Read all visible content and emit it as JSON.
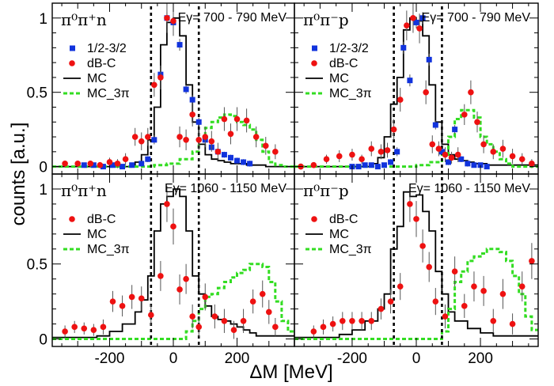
{
  "figure": {
    "ylabel": "counts [a.u.]",
    "xlabel": "ΔM [MeV]",
    "colors": {
      "dbc": "#ee1111",
      "half": "#1133dd",
      "mc": "#000000",
      "mc3pi": "#33dd22"
    }
  },
  "chart_data": [
    {
      "type": "scatter",
      "title": "π⁰π⁺n",
      "energy_range": "Eγ= 700 - 790 MeV",
      "xlim": [
        -380,
        380
      ],
      "ylim": [
        -0.05,
        1.1
      ],
      "xticks": [
        -200,
        0,
        200
      ],
      "yticks": [
        0,
        0.5,
        1
      ],
      "ytick_labels": [
        "0",
        "0.5",
        "1"
      ],
      "cuts": [
        -70,
        80
      ],
      "legend": [
        "1/2-3/2",
        "dB-C",
        "MC",
        "MC_3π"
      ],
      "series": {
        "half": {
          "name": "1/2-3/2",
          "x": [
            -280,
            -250,
            -220,
            -190,
            -160,
            -130,
            -100,
            -80,
            -60,
            -40,
            -20,
            0,
            20,
            40,
            60,
            80,
            100,
            120,
            140,
            160,
            180,
            200,
            220,
            240
          ],
          "y": [
            0.01,
            0.01,
            0.0,
            0.01,
            0.0,
            0.01,
            0.02,
            0.05,
            0.18,
            0.62,
            1.0,
            0.97,
            0.82,
            0.52,
            0.45,
            0.3,
            0.18,
            0.13,
            0.1,
            0.08,
            0.06,
            0.04,
            0.03,
            0.02
          ],
          "err": [
            0.01,
            0.01,
            0.01,
            0.01,
            0.01,
            0.01,
            0.01,
            0.02,
            0.03,
            0.04,
            0.04,
            0.04,
            0.04,
            0.03,
            0.03,
            0.03,
            0.02,
            0.02,
            0.02,
            0.02,
            0.02,
            0.02,
            0.02,
            0.02
          ]
        },
        "dbc": {
          "name": "dB-C",
          "x": [
            -340,
            -300,
            -260,
            -230,
            -200,
            -175,
            -150,
            -120,
            -100,
            -80,
            -60,
            -40,
            -20,
            0,
            20,
            40,
            60,
            80,
            100,
            120,
            140,
            160,
            180,
            200,
            230,
            260,
            290,
            320
          ],
          "y": [
            0.02,
            0.02,
            0.02,
            0.01,
            0.03,
            0.02,
            0.05,
            0.2,
            0.17,
            0.2,
            0.55,
            0.6,
            1.0,
            0.98,
            0.2,
            0.18,
            0.35,
            0.18,
            0.2,
            0.17,
            0.1,
            0.32,
            0.22,
            0.32,
            0.31,
            0.2,
            0.14,
            0.1
          ],
          "err": [
            0.02,
            0.02,
            0.02,
            0.02,
            0.03,
            0.03,
            0.04,
            0.06,
            0.06,
            0.06,
            0.08,
            0.08,
            0.1,
            0.1,
            0.07,
            0.07,
            0.08,
            0.07,
            0.07,
            0.07,
            0.06,
            0.08,
            0.07,
            0.08,
            0.08,
            0.07,
            0.06,
            0.05
          ]
        },
        "mc": {
          "name": "MC",
          "edges": [
            -380,
            -120,
            -100,
            -80,
            -60,
            -40,
            -20,
            0,
            20,
            40,
            60,
            80,
            100,
            120,
            140,
            160,
            180,
            200,
            230,
            260,
            290,
            380
          ],
          "values": [
            0.0,
            0.03,
            0.08,
            0.18,
            0.4,
            0.82,
            0.97,
            1.0,
            0.88,
            0.55,
            0.3,
            0.15,
            0.08,
            0.05,
            0.04,
            0.03,
            0.02,
            0.02,
            0.01,
            0.01,
            0.0
          ]
        },
        "mc3pi": {
          "name": "MC_3π",
          "edges": [
            -380,
            -60,
            -20,
            20,
            60,
            80,
            100,
            120,
            140,
            160,
            180,
            200,
            220,
            240,
            260,
            280,
            300,
            320,
            340,
            380
          ],
          "values": [
            0.0,
            0.01,
            0.02,
            0.05,
            0.1,
            0.18,
            0.26,
            0.3,
            0.33,
            0.35,
            0.34,
            0.3,
            0.28,
            0.25,
            0.18,
            0.1,
            0.03,
            0.01,
            0.0
          ]
        }
      }
    },
    {
      "type": "scatter",
      "title": "π⁰π⁻p",
      "energy_range": "Eγ= 700 - 790 MeV",
      "xlim": [
        -380,
        380
      ],
      "ylim": [
        -0.05,
        1.1
      ],
      "xticks": [
        -200,
        0,
        200
      ],
      "yticks": [
        0,
        0.5,
        1
      ],
      "ytick_labels": [],
      "cuts": [
        -70,
        80
      ],
      "legend": [
        "1/2-3/2",
        "dB-C",
        "MC",
        "MC_3π"
      ],
      "series": {
        "half": {
          "name": "1/2-3/2",
          "x": [
            -200,
            -180,
            -160,
            -140,
            -120,
            -100,
            -80,
            -60,
            -40,
            -20,
            0,
            20,
            40,
            60,
            80,
            100,
            120,
            140,
            160,
            180,
            200,
            220
          ],
          "y": [
            0.0,
            0.0,
            0.01,
            0.01,
            0.0,
            0.01,
            0.03,
            0.1,
            0.8,
            0.58,
            0.97,
            1.0,
            0.72,
            0.28,
            0.1,
            0.03,
            0.25,
            0.05,
            0.02,
            0.01,
            0.01,
            0.0
          ],
          "err": [
            0.01,
            0.01,
            0.01,
            0.01,
            0.01,
            0.01,
            0.02,
            0.03,
            0.04,
            0.04,
            0.04,
            0.04,
            0.04,
            0.03,
            0.02,
            0.02,
            0.03,
            0.02,
            0.02,
            0.01,
            0.01,
            0.01
          ]
        },
        "dbc": {
          "name": "dB-C",
          "x": [
            -360,
            -320,
            -280,
            -240,
            -200,
            -170,
            -140,
            -110,
            -90,
            -70,
            -50,
            -30,
            -10,
            10,
            30,
            50,
            70,
            90,
            110,
            130,
            150,
            170,
            190,
            210,
            240,
            270,
            300,
            330,
            360
          ],
          "y": [
            0.0,
            0.01,
            0.05,
            0.07,
            0.08,
            0.05,
            0.12,
            0.1,
            0.11,
            0.25,
            0.45,
            0.95,
            1.0,
            0.93,
            0.5,
            0.15,
            0.12,
            0.08,
            0.06,
            0.08,
            0.35,
            0.5,
            0.3,
            0.15,
            0.1,
            0.12,
            0.07,
            0.05,
            0.02
          ],
          "err": [
            0.02,
            0.02,
            0.03,
            0.04,
            0.04,
            0.03,
            0.05,
            0.05,
            0.05,
            0.07,
            0.08,
            0.1,
            0.1,
            0.1,
            0.08,
            0.06,
            0.05,
            0.05,
            0.04,
            0.05,
            0.07,
            0.08,
            0.07,
            0.06,
            0.05,
            0.06,
            0.05,
            0.04,
            0.03
          ]
        },
        "mc": {
          "name": "MC",
          "edges": [
            -380,
            -140,
            -120,
            -100,
            -80,
            -60,
            -40,
            -20,
            0,
            20,
            40,
            60,
            80,
            100,
            120,
            140,
            160,
            180,
            220,
            380
          ],
          "values": [
            0.0,
            0.02,
            0.06,
            0.2,
            0.42,
            0.6,
            0.92,
            1.0,
            0.98,
            0.88,
            0.55,
            0.3,
            0.15,
            0.08,
            0.05,
            0.04,
            0.03,
            0.02,
            0.01
          ]
        },
        "mc3pi": {
          "name": "MC_3π",
          "edges": [
            -380,
            0,
            40,
            80,
            100,
            120,
            140,
            160,
            180,
            200,
            220,
            240,
            260,
            280,
            300,
            380
          ],
          "values": [
            0.0,
            0.01,
            0.03,
            0.08,
            0.2,
            0.32,
            0.38,
            0.38,
            0.33,
            0.2,
            0.15,
            0.1,
            0.05,
            0.02,
            0.0
          ]
        }
      }
    },
    {
      "type": "scatter",
      "title": "π⁰π⁺n",
      "energy_range": "Eγ= 1060 - 1150 MeV",
      "xlim": [
        -380,
        380
      ],
      "ylim": [
        -0.05,
        1.1
      ],
      "xticks": [
        -200,
        0,
        200
      ],
      "yticks": [
        0,
        0.5,
        1
      ],
      "ytick_labels": [
        "0",
        "0.5",
        "1"
      ],
      "cuts": [
        -70,
        80
      ],
      "legend": [
        "dB-C",
        "MC",
        "MC_3π"
      ],
      "series": {
        "dbc": {
          "name": "dB-C",
          "x": [
            -340,
            -310,
            -280,
            -250,
            -220,
            -190,
            -160,
            -130,
            -100,
            -70,
            -40,
            -20,
            0,
            20,
            40,
            60,
            80,
            100,
            130,
            160,
            190,
            220,
            250,
            280,
            300,
            320
          ],
          "y": [
            0.05,
            0.08,
            0.07,
            0.06,
            0.08,
            0.25,
            0.22,
            0.28,
            0.27,
            0.16,
            0.42,
            0.9,
            0.75,
            0.33,
            0.4,
            0.15,
            0.08,
            0.28,
            0.15,
            0.12,
            0.06,
            0.12,
            0.25,
            0.3,
            0.18,
            0.08
          ],
          "err": [
            0.04,
            0.04,
            0.04,
            0.04,
            0.05,
            0.07,
            0.07,
            0.08,
            0.08,
            0.07,
            0.1,
            0.12,
            0.12,
            0.1,
            0.1,
            0.08,
            0.07,
            0.09,
            0.08,
            0.08,
            0.06,
            0.08,
            0.08,
            0.09,
            0.08,
            0.06
          ]
        },
        "mc": {
          "name": "MC",
          "edges": [
            -380,
            -240,
            -200,
            -160,
            -120,
            -100,
            -80,
            -60,
            -40,
            -20,
            0,
            20,
            40,
            60,
            80,
            100,
            120,
            140,
            160,
            180,
            200,
            220,
            240,
            260,
            380
          ],
          "values": [
            0.01,
            0.02,
            0.05,
            0.1,
            0.18,
            0.26,
            0.42,
            0.72,
            0.9,
            0.95,
            1.0,
            0.95,
            0.72,
            0.42,
            0.3,
            0.22,
            0.15,
            0.13,
            0.12,
            0.1,
            0.08,
            0.06,
            0.04,
            0.02
          ]
        },
        "mc3pi": {
          "name": "MC_3π",
          "edges": [
            -380,
            40,
            60,
            80,
            100,
            120,
            140,
            160,
            180,
            200,
            220,
            240,
            260,
            280,
            300,
            320,
            340,
            360,
            380
          ],
          "values": [
            0.0,
            0.05,
            0.12,
            0.2,
            0.28,
            0.3,
            0.34,
            0.38,
            0.41,
            0.44,
            0.46,
            0.5,
            0.5,
            0.48,
            0.38,
            0.25,
            0.12,
            0.05
          ]
        }
      }
    },
    {
      "type": "scatter",
      "title": "π⁰π⁻p",
      "energy_range": "Eγ= 1060 - 1150 MeV",
      "xlim": [
        -380,
        380
      ],
      "ylim": [
        -0.05,
        1.1
      ],
      "xticks": [
        -200,
        0,
        200
      ],
      "yticks": [
        0,
        0.5,
        1
      ],
      "ytick_labels": [],
      "cuts": [
        -70,
        80
      ],
      "legend": [
        "dB-C",
        "MC",
        "MC_3π"
      ],
      "series": {
        "dbc": {
          "name": "dB-C",
          "x": [
            -320,
            -290,
            -260,
            -230,
            -200,
            -170,
            -140,
            -110,
            -80,
            -50,
            -20,
            0,
            20,
            40,
            60,
            90,
            120,
            150,
            180,
            210,
            240,
            270,
            300,
            330,
            360
          ],
          "y": [
            0.05,
            0.08,
            0.1,
            0.12,
            0.12,
            0.12,
            0.12,
            0.2,
            0.25,
            0.35,
            0.9,
            0.8,
            0.62,
            0.48,
            0.25,
            0.15,
            0.45,
            0.22,
            0.35,
            0.32,
            0.12,
            0.3,
            0.1,
            0.35,
            0.52
          ],
          "err": [
            0.04,
            0.05,
            0.05,
            0.06,
            0.06,
            0.06,
            0.06,
            0.07,
            0.08,
            0.09,
            0.12,
            0.12,
            0.11,
            0.1,
            0.09,
            0.08,
            0.1,
            0.08,
            0.1,
            0.1,
            0.08,
            0.1,
            0.07,
            0.1,
            0.12
          ]
        },
        "mc": {
          "name": "MC",
          "edges": [
            -380,
            -240,
            -200,
            -160,
            -120,
            -100,
            -80,
            -60,
            -40,
            -20,
            0,
            20,
            40,
            60,
            80,
            100,
            120,
            160,
            200,
            240,
            380
          ],
          "values": [
            0.01,
            0.03,
            0.06,
            0.12,
            0.2,
            0.3,
            0.6,
            0.75,
            0.98,
            0.95,
            0.96,
            0.85,
            0.72,
            0.45,
            0.3,
            0.18,
            0.12,
            0.07,
            0.04,
            0.02
          ]
        },
        "mc3pi": {
          "name": "MC_3π",
          "edges": [
            -380,
            80,
            100,
            120,
            140,
            160,
            180,
            200,
            220,
            240,
            260,
            280,
            300,
            320,
            340,
            360,
            380
          ],
          "values": [
            0.0,
            0.05,
            0.2,
            0.38,
            0.45,
            0.52,
            0.55,
            0.57,
            0.6,
            0.6,
            0.58,
            0.52,
            0.42,
            0.3,
            0.15,
            0.06
          ]
        }
      }
    }
  ]
}
